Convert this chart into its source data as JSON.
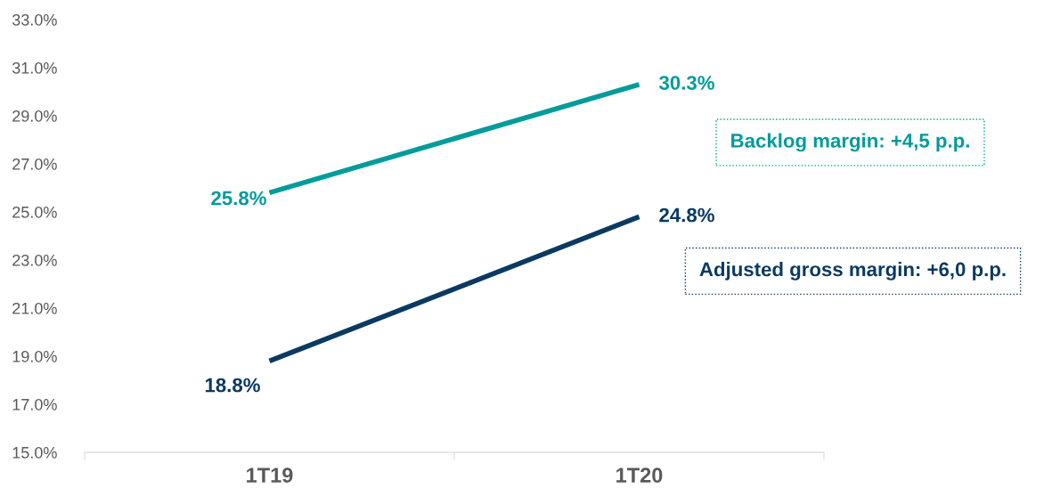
{
  "chart_data": {
    "type": "line",
    "categories": [
      "1T19",
      "1T20"
    ],
    "series": [
      {
        "color": "#009b9b",
        "values": [
          25.8,
          30.3
        ],
        "value_labels": [
          "25.8%",
          "30.3%"
        ]
      },
      {
        "color": "#0a3a62",
        "values": [
          18.8,
          24.8
        ],
        "value_labels": [
          "18.8%",
          "24.8%"
        ]
      }
    ],
    "annotations": [
      "Backlog margin: +4,5 p.p.",
      "Adjusted gross margin: +6,0 p.p."
    ],
    "ylim": [
      15,
      33
    ],
    "yticks": [
      {
        "value": 15,
        "label": "15.0%"
      },
      {
        "value": 17,
        "label": "17.0%"
      },
      {
        "value": 19,
        "label": "19.0%"
      },
      {
        "value": 21,
        "label": "21.0%"
      },
      {
        "value": 23,
        "label": "23.0%"
      },
      {
        "value": 25,
        "label": "25.0%"
      },
      {
        "value": 27,
        "label": "27.0%"
      },
      {
        "value": 29,
        "label": "29.0%"
      },
      {
        "value": 31,
        "label": "31.0%"
      },
      {
        "value": 33,
        "label": "33.0%"
      }
    ],
    "grid": false,
    "marker": "none",
    "line_style": "solid"
  }
}
